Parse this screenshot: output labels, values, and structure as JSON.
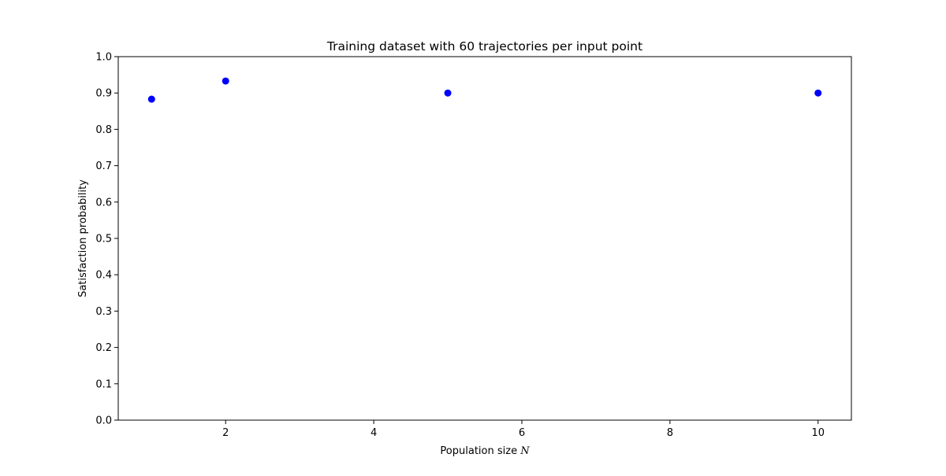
{
  "chart_data": {
    "type": "scatter",
    "title": "Training dataset with 60 trajectories per input point",
    "xlabel": "Population size",
    "xlabel_var": "N",
    "ylabel": "Satisfaction probability",
    "xlim": [
      0.55,
      10.45
    ],
    "ylim": [
      0.0,
      1.0
    ],
    "xticks": [
      2,
      4,
      6,
      8,
      10
    ],
    "yticks": [
      0.0,
      0.1,
      0.2,
      0.3,
      0.4,
      0.5,
      0.6,
      0.7,
      0.8,
      0.9,
      1.0
    ],
    "xtick_labels": [
      "2",
      "4",
      "6",
      "8",
      "10"
    ],
    "ytick_labels": [
      "0.0",
      "0.1",
      "0.2",
      "0.3",
      "0.4",
      "0.5",
      "0.6",
      "0.7",
      "0.8",
      "0.9",
      "1.0"
    ],
    "grid": false,
    "legend": false,
    "marker_color": "#0000ff",
    "series": [
      {
        "x": [
          1,
          2,
          5,
          10
        ],
        "y": [
          0.883,
          0.933,
          0.9,
          0.9
        ]
      }
    ]
  }
}
